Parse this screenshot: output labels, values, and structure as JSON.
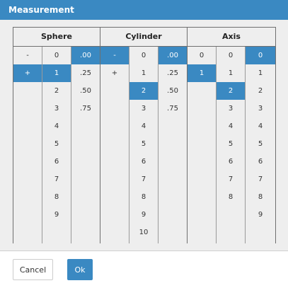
{
  "dialog": {
    "title": "Measurement"
  },
  "groups": [
    {
      "name": "Sphere",
      "columns": [
        {
          "items": [
            "-",
            "+"
          ],
          "selected": 1
        },
        {
          "items": [
            "0",
            "1",
            "2",
            "3",
            "4",
            "5",
            "6",
            "7",
            "8",
            "9"
          ],
          "selected": 1
        },
        {
          "items": [
            ".00",
            ".25",
            ".50",
            ".75"
          ],
          "selected": 0
        }
      ]
    },
    {
      "name": "Cylinder",
      "columns": [
        {
          "items": [
            "-",
            "+"
          ],
          "selected": 0
        },
        {
          "items": [
            "0",
            "1",
            "2",
            "3",
            "4",
            "5",
            "6",
            "7",
            "8",
            "9",
            "10"
          ],
          "selected": 2
        },
        {
          "items": [
            ".00",
            ".25",
            ".50",
            ".75"
          ],
          "selected": 0
        }
      ]
    },
    {
      "name": "Axis",
      "columns": [
        {
          "items": [
            "0",
            "1"
          ],
          "selected": 1
        },
        {
          "items": [
            "0",
            "1",
            "2",
            "3",
            "4",
            "5",
            "6",
            "7",
            "8"
          ],
          "selected": 2
        },
        {
          "items": [
            "0",
            "1",
            "2",
            "3",
            "4",
            "5",
            "6",
            "7",
            "8",
            "9"
          ],
          "selected": 0
        }
      ]
    }
  ],
  "buttons": {
    "cancel": "Cancel",
    "ok": "Ok"
  },
  "colors": {
    "accent": "#3a89c2",
    "panel": "#eeeeee"
  }
}
